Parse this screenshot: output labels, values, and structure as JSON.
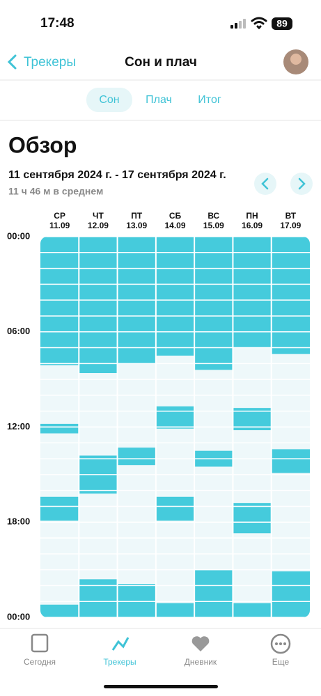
{
  "status": {
    "time": "17:48",
    "battery": "89"
  },
  "nav": {
    "back": "Трекеры",
    "title": "Сон и плач"
  },
  "tabs": [
    "Сон",
    "Плач",
    "Итог"
  ],
  "heading": "Обзор",
  "range": "11 сентября 2024 г. - 17 сентября 2024 г.",
  "average": "11 ч 46 м в среднем",
  "chart_data": {
    "type": "timeline",
    "categories": [
      "СР",
      "ЧТ",
      "ПТ",
      "СБ",
      "ВС",
      "ПН",
      "ВТ"
    ],
    "dates": [
      "11.09",
      "12.09",
      "13.09",
      "14.09",
      "15.09",
      "16.09",
      "17.09"
    ],
    "intervals": [
      [
        [
          0,
          8.1
        ],
        [
          11.8,
          12.4
        ],
        [
          16.4,
          17.9
        ],
        [
          23.2,
          24
        ]
      ],
      [
        [
          0,
          8.6
        ],
        [
          13.8,
          16.2
        ],
        [
          21.6,
          24
        ]
      ],
      [
        [
          0,
          8.0
        ],
        [
          13.3,
          14.4
        ],
        [
          21.9,
          24
        ]
      ],
      [
        [
          0,
          7.5
        ],
        [
          10.7,
          12.1
        ],
        [
          16.4,
          17.9
        ],
        [
          23.1,
          24
        ]
      ],
      [
        [
          0,
          8.4
        ],
        [
          13.5,
          14.5
        ],
        [
          21.0,
          24
        ]
      ],
      [
        [
          0,
          7.0
        ],
        [
          10.8,
          12.2
        ],
        [
          16.8,
          18.7
        ],
        [
          23.1,
          24
        ]
      ],
      [
        [
          0,
          7.4
        ],
        [
          13.4,
          14.9
        ],
        [
          21.1,
          24
        ]
      ]
    ],
    "color": "#45cbdc",
    "ylim": [
      0,
      24
    ],
    "yticks": [
      {
        "value": 0,
        "label": "00:00"
      },
      {
        "value": 6,
        "label": "06:00"
      },
      {
        "value": 12,
        "label": "12:00"
      },
      {
        "value": 18,
        "label": "18:00"
      },
      {
        "value": 24,
        "label": "00:00"
      }
    ]
  },
  "tabbar": [
    "Сегодня",
    "Трекеры",
    "Дневник",
    "Еще"
  ]
}
